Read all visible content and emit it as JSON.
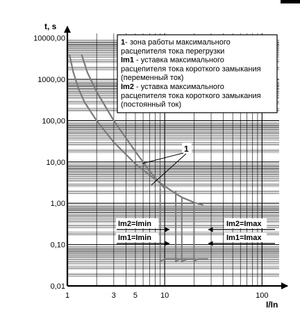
{
  "chart_data": {
    "type": "line",
    "title": "",
    "xlabel": "I/In",
    "ylabel": "t, s",
    "x_scale": "log",
    "y_scale": "log",
    "xlim": [
      1,
      150
    ],
    "ylim": [
      0.01,
      12000
    ],
    "grid": true,
    "x_tick_labels": [
      {
        "value": 1,
        "label": "1"
      },
      {
        "value": 3,
        "label": "3"
      },
      {
        "value": 5,
        "label": "5"
      },
      {
        "value": 10,
        "label": "10"
      },
      {
        "value": 100,
        "label": "100"
      }
    ],
    "y_tick_labels": [
      {
        "value": 0.01,
        "label": "0,01"
      },
      {
        "value": 0.1,
        "label": "0,10"
      },
      {
        "value": 1,
        "label": "1,00"
      },
      {
        "value": 10,
        "label": "10,00"
      },
      {
        "value": 100,
        "label": "100,00"
      },
      {
        "value": 1000,
        "label": "1000,00"
      },
      {
        "value": 10000,
        "label": "10000,00"
      }
    ],
    "series": [
      {
        "x": [
          1.05,
          1.15,
          1.3,
          1.5,
          2.0,
          3.0,
          5.0,
          7.0,
          10.0,
          13.0,
          15.0,
          20.0,
          25.0
        ],
        "y": [
          4000,
          1500,
          600,
          280,
          100,
          30,
          9,
          4.8,
          2.6,
          1.7,
          1.4,
          1.05,
          0.9
        ]
      },
      {
        "x": [
          1.4,
          1.6,
          2.0,
          3.0,
          5.0,
          7.0,
          8.5,
          10.0
        ],
        "y": [
          4000,
          1500,
          500,
          100,
          18,
          6,
          3.5,
          2.3
        ]
      }
    ],
    "trip_lines": [
      {
        "x_left": 9,
        "x_right": 9.3,
        "t_top": 2.3,
        "t_flat": 0.045,
        "x_end": 14
      },
      {
        "x_left": 13,
        "x_right": 13.4,
        "t_top": 2.0,
        "t_flat": 0.045,
        "x_end": 17
      },
      {
        "x_left": 15,
        "x_right": 16,
        "t_top": 1.4,
        "t_flat": 0.045,
        "x_end": 21
      },
      {
        "x_left": 20,
        "x_right": 20.5,
        "t_top": 1.05,
        "t_flat": 0.045,
        "x_end": 28
      }
    ],
    "annotations": [
      {
        "text": "1",
        "callout": true
      },
      {
        "text": "Im2=Imin",
        "arrow": "right"
      },
      {
        "text": "Im1=Imin",
        "arrow": "right"
      },
      {
        "text": "Im2=Imax",
        "arrow": "left"
      },
      {
        "text": "Im1=Imax",
        "arrow": "left"
      }
    ],
    "legend": {
      "placement": "top-right",
      "entries": [
        {
          "bold": "1",
          "text": "- зона работы максимального"
        },
        {
          "bold": "",
          "text": "расцепителя тока перегрузки"
        },
        {
          "bold": "Im1",
          "text": " - уставка максимального"
        },
        {
          "bold": "",
          "text": "расцепителя тока короткого замыкания"
        },
        {
          "bold": "",
          "text": "(переменный ток)"
        },
        {
          "bold": "Im2",
          "text": " - уставка максимального"
        },
        {
          "bold": "",
          "text": "расцепителя тока короткого замыкания"
        },
        {
          "bold": "",
          "text": "(постоянный ток)"
        }
      ]
    },
    "colors": {
      "curve": "#7a7a7a",
      "grid": "#000000",
      "text": "#000000"
    }
  }
}
